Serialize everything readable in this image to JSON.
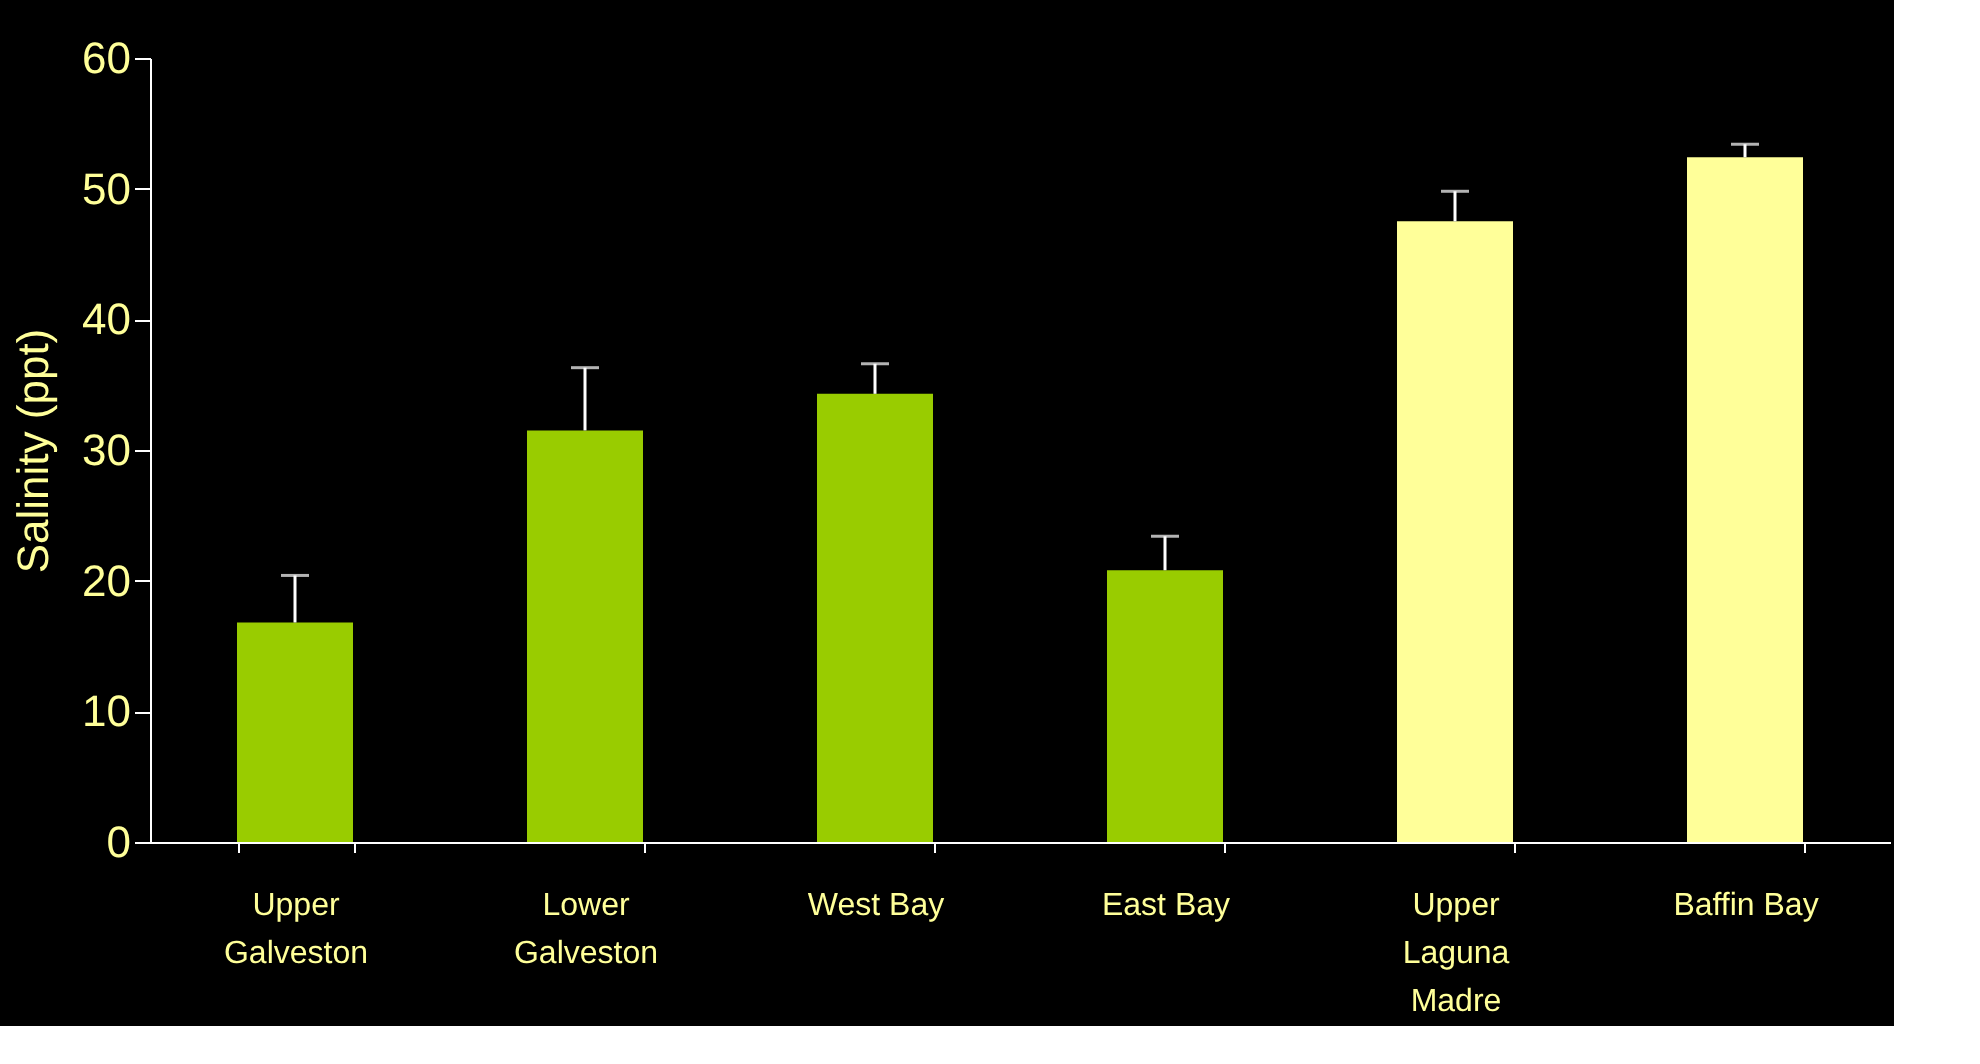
{
  "chart_data": {
    "type": "bar",
    "ylabel": "Salinity (ppt)",
    "categories": [
      "Upper\nGalveston",
      "Lower\nGalveston",
      "West Bay",
      "East Bay",
      "Upper\nLaguna\nMadre",
      "Baffin Bay"
    ],
    "values": [
      16.8,
      31.5,
      34.3,
      20.8,
      47.5,
      52.4
    ],
    "colors": [
      "#99cc00",
      "#99cc00",
      "#99cc00",
      "#99cc00",
      "#ffff99",
      "#ffff99"
    ],
    "errors": [
      [
        16.8,
        20.4
      ],
      [
        31.5,
        36.3
      ],
      [
        34.3,
        36.6
      ],
      [
        20.8,
        23.4
      ],
      [
        47.5,
        49.8
      ],
      [
        52.4,
        53.4
      ]
    ],
    "ylim": [
      0,
      60
    ],
    "yticks": [
      0,
      10,
      20,
      30,
      40,
      50,
      60
    ],
    "grid": false
  }
}
